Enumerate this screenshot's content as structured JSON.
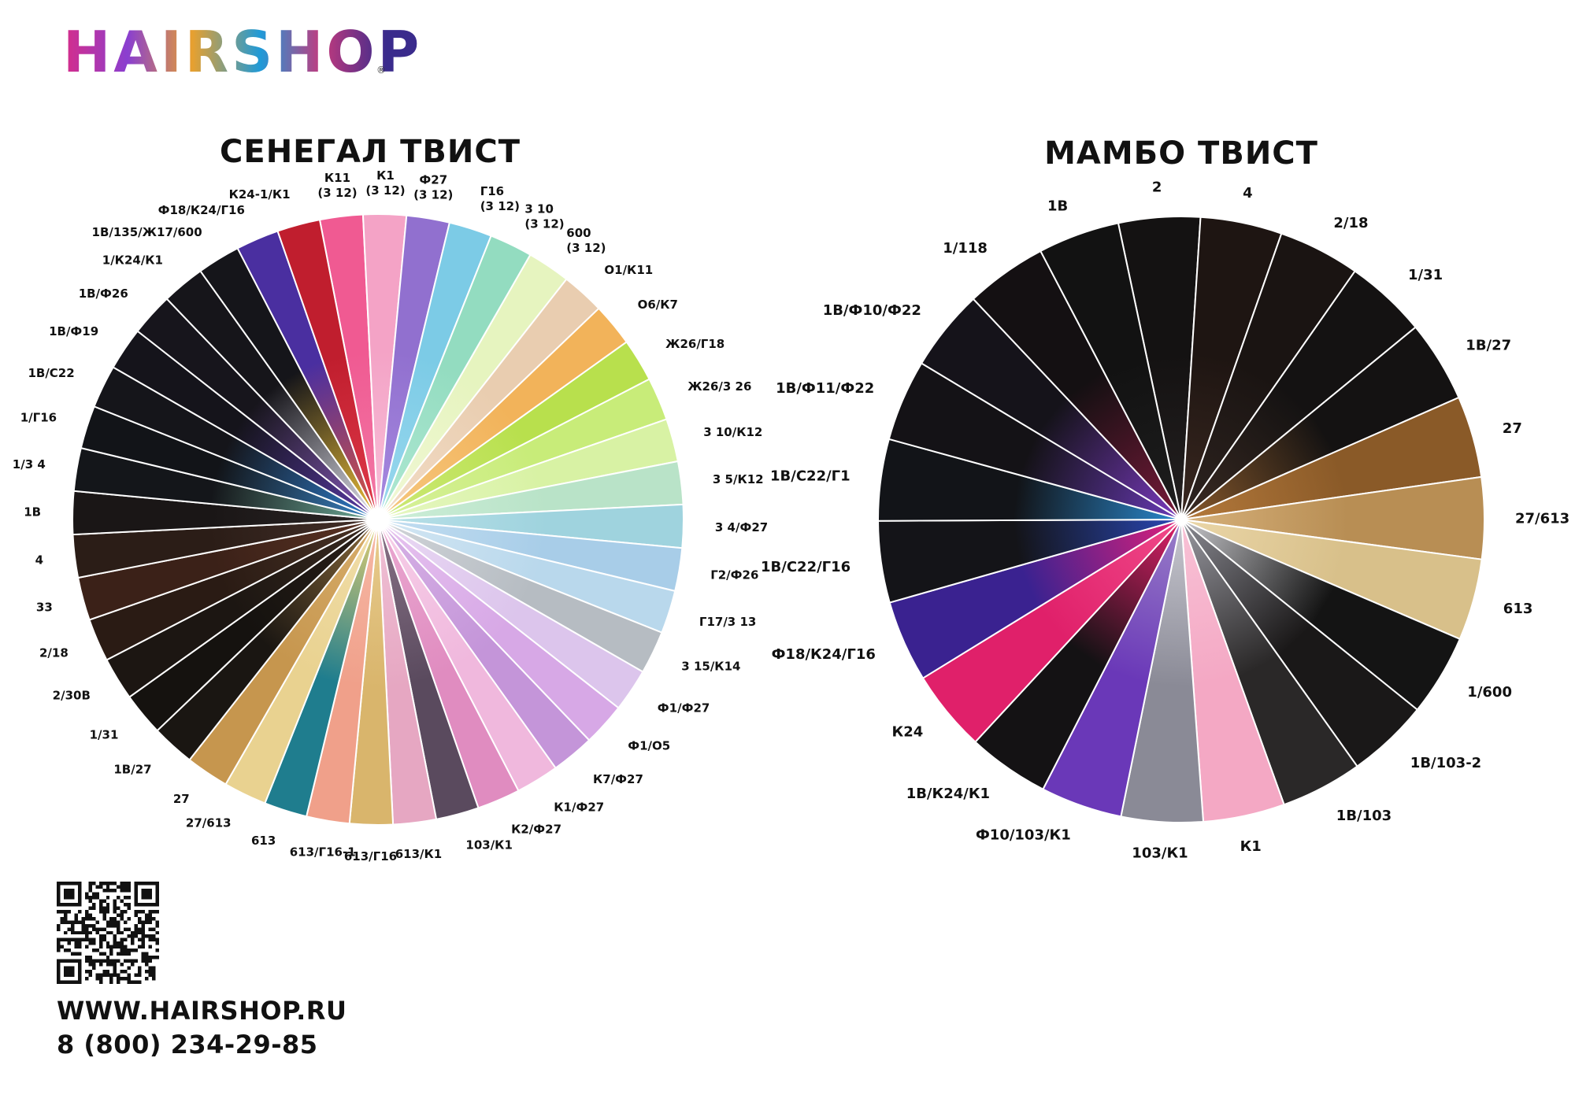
{
  "brand": {
    "logo": "HAIRSHOP",
    "reg": "®"
  },
  "wheels": [
    {
      "title": "СЕНЕГАЛ ТВИСТ",
      "swatches": [
        {
          "label": "К11\n(3 12)",
          "c1": "#f05a92",
          "c2": "#f27aa6"
        },
        {
          "label": "К1\n(3 12)",
          "c1": "#f4a3c6",
          "c2": "#f7bfd8"
        },
        {
          "label": "Ф27\n(3 12)",
          "c1": "#9170cf",
          "c2": "#a78ae0"
        },
        {
          "label": "Г16\n(3 12)",
          "c1": "#7ccbe6",
          "c2": "#9ad8ee"
        },
        {
          "label": "3 10\n(3 12)",
          "c1": "#93dcc0",
          "c2": "#b0e8d3"
        },
        {
          "label": "600\n(3 12)",
          "c1": "#e6f4bf",
          "c2": "#f1f8d6"
        },
        {
          "label": "О1/К11",
          "c1": "#e9cdb0",
          "c2": "#f2dcc6"
        },
        {
          "label": "О6/К7",
          "c1": "#f2b35a",
          "c2": "#f6c77f"
        },
        {
          "label": "Ж26/Г18",
          "c1": "#b8e04d",
          "c2": "#cde978"
        },
        {
          "label": "Ж26/3 26",
          "c1": "#c8ec79",
          "c2": "#d8f19c"
        },
        {
          "label": "3 10/К12",
          "c1": "#d8f2a4",
          "c2": "#e6f7c2"
        },
        {
          "label": "3 5/К12",
          "c1": "#b9e3c8",
          "c2": "#cdeed8"
        },
        {
          "label": "3 4/Ф27",
          "c1": "#9fd3de",
          "c2": "#b9e0e8"
        },
        {
          "label": "Г2/Ф26",
          "c1": "#a8cde8",
          "c2": "#c3def1"
        },
        {
          "label": "Г17/3 13",
          "c1": "#b9d8ec",
          "c2": "#d3e6f3"
        },
        {
          "label": "3 15/К14",
          "c1": "#b6bcc2",
          "c2": "#d0d4d8"
        },
        {
          "label": "Ф1/Ф27",
          "c1": "#dcc5ec",
          "c2": "#e9d8f3"
        },
        {
          "label": "Ф1/О5",
          "c1": "#d7a8e6",
          "c2": "#e6c3ef"
        },
        {
          "label": "К7/Ф27",
          "c1": "#c495d9",
          "c2": "#d7b3e6"
        },
        {
          "label": "К1/Ф27",
          "c1": "#f0b8dd",
          "c2": "#f6cfe8"
        },
        {
          "label": "К2/Ф27",
          "c1": "#e08cc0",
          "c2": "#eaa9d1"
        },
        {
          "label": "103/К1",
          "c1": "#5a4a5e",
          "c2": "#8a7488"
        },
        {
          "label": "613/К1",
          "c1": "#e6a7c2",
          "c2": "#f0c2d6"
        },
        {
          "label": "613/Г16",
          "c1": "#d9b56c",
          "c2": "#e8cc8f"
        },
        {
          "label": "613/Г16-1",
          "c1": "#f0a08a",
          "c2": "#f6b9a7"
        },
        {
          "label": "613",
          "c1": "#1f7d8e",
          "c2": "#e7d070"
        },
        {
          "label": "27/613",
          "c1": "#e9d290",
          "c2": "#f1deaa"
        },
        {
          "label": "27",
          "c1": "#c6964e",
          "c2": "#d8ae6c"
        },
        {
          "label": "1В/27",
          "c1": "#1a1612",
          "c2": "#8a6a3c"
        },
        {
          "label": "1/31",
          "c1": "#15120f",
          "c2": "#2a1f19"
        },
        {
          "label": "2/30В",
          "c1": "#1c1612",
          "c2": "#3a2a20"
        },
        {
          "label": "2/18",
          "c1": "#2a1b14",
          "c2": "#4a3326"
        },
        {
          "label": "33",
          "c1": "#3b2118",
          "c2": "#5a3324"
        },
        {
          "label": "4",
          "c1": "#2b1d17",
          "c2": "#44302a"
        },
        {
          "label": "1В",
          "c1": "#1a1616",
          "c2": "#2c2626"
        },
        {
          "label": "1/3 4",
          "c1": "#14161a",
          "c2": "#6fae9a"
        },
        {
          "label": "1/Г16",
          "c1": "#121418",
          "c2": "#3a86c8"
        },
        {
          "label": "1В/С22",
          "c1": "#15151a",
          "c2": "#2f7fd0"
        },
        {
          "label": "1В/Ф19",
          "c1": "#15141b",
          "c2": "#5a3aa8"
        },
        {
          "label": "1В/Ф26",
          "c1": "#17151c",
          "c2": "#8a5cc0"
        },
        {
          "label": "1/К24/К1",
          "c1": "#16151a",
          "c2": "#e6e6f0"
        },
        {
          "label": "1В/135/Ж17/600",
          "c1": "#15151a",
          "c2": "#f3c43a"
        },
        {
          "label": "Ф18/К24/Г16",
          "c1": "#4a2fa0",
          "c2": "#e0563a"
        },
        {
          "label": "К24-1/К1",
          "c1": "#c01e2e",
          "c2": "#e03a4a"
        }
      ]
    },
    {
      "title": "МАМБО ТВИСТ",
      "swatches": [
        {
          "label": "2",
          "c1": "#141212",
          "c2": "#242020"
        },
        {
          "label": "4",
          "c1": "#1e1512",
          "c2": "#3a2820"
        },
        {
          "label": "2/18",
          "c1": "#1a1412",
          "c2": "#2e2420"
        },
        {
          "label": "1/31",
          "c1": "#141212",
          "c2": "#3a2a22"
        },
        {
          "label": "1В/27",
          "c1": "#141212",
          "c2": "#8a5a2c"
        },
        {
          "label": "27",
          "c1": "#8a5a28",
          "c2": "#b57a3c"
        },
        {
          "label": "27/613",
          "c1": "#b88e54",
          "c2": "#d6b07a"
        },
        {
          "label": "613",
          "c1": "#d8c08a",
          "c2": "#ead6a8"
        },
        {
          "label": "1/600",
          "c1": "#141414",
          "c2": "#c8c8cc"
        },
        {
          "label": "1В/103-2",
          "c1": "#1a1818",
          "c2": "#8a8a92"
        },
        {
          "label": "1В/103",
          "c1": "#2a2828",
          "c2": "#9a9aa2"
        },
        {
          "label": "К1",
          "c1": "#f4a8c4",
          "c2": "#f8c2d6"
        },
        {
          "label": "103/К1",
          "c1": "#8a8a96",
          "c2": "#c8c8d0"
        },
        {
          "label": "Ф10/103/К1",
          "c1": "#6a38b8",
          "c2": "#9a80c8"
        },
        {
          "label": "1В/К24/К1",
          "c1": "#141214",
          "c2": "#e0206a"
        },
        {
          "label": "К24",
          "c1": "#e0206a",
          "c2": "#f04a8a"
        },
        {
          "label": "Ф18/К24/Г16",
          "c1": "#3a2290",
          "c2": "#e0207a"
        },
        {
          "label": "1В/С22/Г16",
          "c1": "#141418",
          "c2": "#2a48b8"
        },
        {
          "label": "1В/С22/Г1",
          "c1": "#121418",
          "c2": "#2a8ad0"
        },
        {
          "label": "1В/Ф11/Ф22",
          "c1": "#141216",
          "c2": "#6a3ab8"
        },
        {
          "label": "1В/Ф10/Ф22",
          "c1": "#15131a",
          "c2": "#7a3ac0"
        },
        {
          "label": "1/118",
          "c1": "#141012",
          "c2": "#7a1a3a"
        },
        {
          "label": "1В",
          "c1": "#121212",
          "c2": "#1e1e1e"
        }
      ]
    }
  ],
  "contacts": {
    "website": "WWW.HAIRSHOP.RU",
    "phone": "8 (800) 234-29-85"
  }
}
